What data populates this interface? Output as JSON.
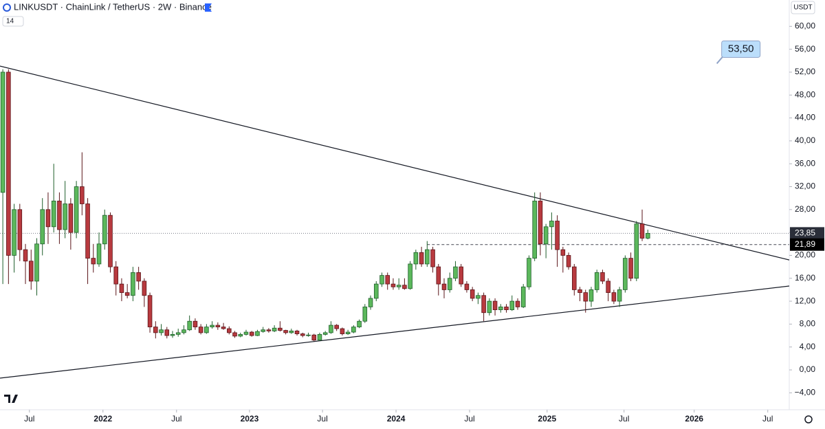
{
  "chart_data": {
    "type": "candlestick",
    "title": "LINKUSDT · ChainLink / TetherUS · 2W · Binance",
    "indicator": "14",
    "y_unit": "USDT",
    "up_color": "#5cb85c",
    "down_color": "#b83a3f",
    "candles": [
      [
        31,
        52.5,
        15,
        52
      ],
      [
        52,
        52.5,
        15,
        20
      ],
      [
        20,
        29,
        17,
        28
      ],
      [
        28,
        29,
        19,
        21
      ],
      [
        21,
        22,
        15,
        19
      ],
      [
        19,
        21,
        14,
        15.5
      ],
      [
        15.5,
        23,
        13,
        22
      ],
      [
        22,
        30,
        20,
        28
      ],
      [
        28,
        31,
        22,
        25
      ],
      [
        25,
        36,
        24,
        29.5
      ],
      [
        29.5,
        31,
        22,
        24.5
      ],
      [
        24.5,
        33,
        23,
        29
      ],
      [
        29,
        30,
        21,
        24
      ],
      [
        24,
        33,
        23,
        32
      ],
      [
        32,
        38,
        27,
        29
      ],
      [
        29,
        30,
        15,
        19.5
      ],
      [
        19.5,
        22,
        17,
        18.5
      ],
      [
        18.5,
        24,
        18,
        22
      ],
      [
        22,
        28,
        21,
        27
      ],
      [
        27,
        27.5,
        17,
        18
      ],
      [
        18,
        19,
        13,
        15
      ],
      [
        15,
        16,
        12,
        13.5
      ],
      [
        13.5,
        15,
        12.5,
        13
      ],
      [
        13,
        18,
        12,
        17
      ],
      [
        17,
        18,
        14,
        15.5
      ],
      [
        15.5,
        16,
        11,
        13
      ],
      [
        13,
        13.5,
        6.5,
        7.5
      ],
      [
        7.5,
        8.5,
        5.5,
        6.5
      ],
      [
        6.5,
        8,
        6,
        7
      ],
      [
        7,
        7.5,
        5.5,
        6
      ],
      [
        6,
        6.8,
        5.6,
        6.2
      ],
      [
        6.2,
        7.2,
        5.8,
        6.5
      ],
      [
        6.5,
        7.8,
        6.2,
        7
      ],
      [
        7,
        9.5,
        6.8,
        8.5
      ],
      [
        8.5,
        9,
        7,
        7.5
      ],
      [
        7.5,
        8,
        6.2,
        6.5
      ],
      [
        6.5,
        8,
        6.3,
        7.5
      ],
      [
        7.5,
        8.5,
        7.2,
        7.8
      ],
      [
        7.8,
        8.3,
        7,
        7.5
      ],
      [
        7.5,
        8.2,
        7,
        7.2
      ],
      [
        7.2,
        7.6,
        6.2,
        6.5
      ],
      [
        6.5,
        6.8,
        5.6,
        5.9
      ],
      [
        5.9,
        6.5,
        5.7,
        6.2
      ],
      [
        6.2,
        7,
        6,
        6.6
      ],
      [
        6.6,
        6.8,
        5.8,
        6
      ],
      [
        6,
        7,
        5.9,
        6.7
      ],
      [
        6.7,
        7.5,
        6.5,
        7
      ],
      [
        7,
        7.3,
        6.5,
        6.8
      ],
      [
        6.8,
        7.8,
        6.6,
        7.3
      ],
      [
        7.3,
        8.5,
        6.7,
        6.9
      ],
      [
        6.9,
        7,
        6.2,
        6.5
      ],
      [
        6.5,
        7.2,
        6.3,
        6.8
      ],
      [
        6.8,
        7,
        6,
        6.3
      ],
      [
        6.3,
        6.5,
        5.7,
        6
      ],
      [
        6,
        6.5,
        5.8,
        6.1
      ],
      [
        6.1,
        6.3,
        5,
        5.2
      ],
      [
        5.2,
        6.5,
        5.1,
        6.2
      ],
      [
        6.2,
        6.8,
        6,
        6.5
      ],
      [
        6.5,
        8.5,
        6.3,
        7.8
      ],
      [
        7.8,
        8,
        6.8,
        7.2
      ],
      [
        7.2,
        7.4,
        6,
        6.3
      ],
      [
        6.3,
        7,
        6.1,
        6.6
      ],
      [
        6.6,
        7.8,
        6.4,
        7.5
      ],
      [
        7.5,
        8.8,
        7.3,
        8.5
      ],
      [
        8.5,
        11.5,
        8.2,
        11
      ],
      [
        11,
        13,
        10.5,
        12.5
      ],
      [
        12.5,
        15.5,
        12,
        15
      ],
      [
        15,
        17,
        14.5,
        16.5
      ],
      [
        16.5,
        17,
        14,
        15
      ],
      [
        15,
        16,
        14,
        14.5
      ],
      [
        14.5,
        16,
        14,
        14.8
      ],
      [
        14.8,
        16,
        14,
        14.2
      ],
      [
        14.2,
        19,
        14,
        18.5
      ],
      [
        18.5,
        21,
        17.5,
        20.5
      ],
      [
        20.5,
        21.5,
        18,
        18.5
      ],
      [
        18.5,
        22.5,
        18,
        21
      ],
      [
        21,
        21.5,
        17,
        18
      ],
      [
        18,
        18.5,
        13,
        15
      ],
      [
        15,
        16,
        12.5,
        14
      ],
      [
        14,
        17,
        13.5,
        16
      ],
      [
        16,
        19,
        15.5,
        18
      ],
      [
        18,
        18.5,
        14.5,
        15
      ],
      [
        15,
        15.5,
        13.5,
        14
      ],
      [
        14,
        14.5,
        12,
        12.5
      ],
      [
        12.5,
        13.5,
        11.5,
        13
      ],
      [
        13,
        13.5,
        8.5,
        10
      ],
      [
        10,
        12.5,
        9.5,
        12
      ],
      [
        12,
        12.5,
        9.5,
        10.5
      ],
      [
        10.5,
        11.5,
        10,
        11
      ],
      [
        11,
        11.5,
        10,
        10.5
      ],
      [
        10.5,
        13,
        10.3,
        12
      ],
      [
        12,
        12.5,
        10.5,
        11
      ],
      [
        11,
        15,
        10.8,
        14.5
      ],
      [
        14.5,
        20,
        14,
        19.5
      ],
      [
        19.5,
        31,
        19,
        29.5
      ],
      [
        29.5,
        31,
        20,
        22
      ],
      [
        22,
        25.5,
        19.5,
        25
      ],
      [
        25,
        27.5,
        21,
        26
      ],
      [
        26,
        27,
        18,
        21
      ],
      [
        21,
        21.5,
        17,
        20
      ],
      [
        20,
        20.5,
        17.5,
        18
      ],
      [
        18,
        18.5,
        13,
        14
      ],
      [
        14,
        14.5,
        12,
        13.5
      ],
      [
        13.5,
        14,
        10,
        12
      ],
      [
        12,
        14.5,
        11,
        14
      ],
      [
        14,
        17.5,
        13.5,
        17
      ],
      [
        17,
        17.5,
        15,
        15.5
      ],
      [
        15.5,
        16,
        12,
        13.5
      ],
      [
        13.5,
        14,
        11.5,
        12
      ],
      [
        12,
        14.5,
        11,
        14
      ],
      [
        14,
        20,
        13.5,
        19.5
      ],
      [
        19.5,
        20.5,
        15.5,
        16
      ],
      [
        16,
        26,
        15.5,
        25.5
      ],
      [
        25.5,
        28,
        22.5,
        23
      ],
      [
        23,
        24.5,
        22.8,
        23.85
      ]
    ],
    "xlim": [
      -0.5,
      139
    ],
    "xticks": [
      {
        "value": 4.7,
        "label": "Jul"
      },
      {
        "value": 17.7,
        "label": "2022"
      },
      {
        "value": 30.7,
        "label": "Jul"
      },
      {
        "value": 43.6,
        "label": "2023"
      },
      {
        "value": 56.5,
        "label": "Jul"
      },
      {
        "value": 69.5,
        "label": "2024"
      },
      {
        "value": 82.5,
        "label": "Jul"
      },
      {
        "value": 96.2,
        "label": "2025"
      },
      {
        "value": 109.8,
        "label": "Jul"
      },
      {
        "value": 122.2,
        "label": "2026"
      },
      {
        "value": 135.2,
        "label": "Jul"
      }
    ],
    "ylim": [
      -6.96,
      64.6
    ],
    "yticks": [
      {
        "value": 60,
        "label": "60,00"
      },
      {
        "value": 56,
        "label": "56,00"
      },
      {
        "value": 52,
        "label": "52,00"
      },
      {
        "value": 48,
        "label": "48,00"
      },
      {
        "value": 44,
        "label": "44,00"
      },
      {
        "value": 40,
        "label": "40,00"
      },
      {
        "value": 36,
        "label": "36,00"
      },
      {
        "value": 32,
        "label": "32,00"
      },
      {
        "value": 28,
        "label": "28,00"
      },
      {
        "value": 24,
        "label": "24,00"
      },
      {
        "value": 20,
        "label": "20,00"
      },
      {
        "value": 16,
        "label": "16,00"
      },
      {
        "value": 12,
        "label": "12,00"
      },
      {
        "value": 8,
        "label": "8,00"
      },
      {
        "value": 4,
        "label": "4,00"
      },
      {
        "value": 0,
        "label": "0,00"
      },
      {
        "value": -4,
        "label": "−4,00"
      }
    ],
    "price_lines": [
      {
        "value": 23.85,
        "label": "23,85",
        "style": "dotted",
        "x_start": -0.5
      },
      {
        "value": 21.89,
        "label": "21,89",
        "style": "dashed",
        "x_start": 75
      }
    ],
    "trendlines": [
      {
        "x": [
          -0.5,
          139
        ],
        "y": [
          53.06,
          19.2
        ]
      },
      {
        "x": [
          -0.5,
          139
        ],
        "y": [
          -1.44,
          14.65
        ]
      }
    ],
    "callout": {
      "label": "53,50",
      "value": 53.5,
      "x": 126.2
    }
  }
}
